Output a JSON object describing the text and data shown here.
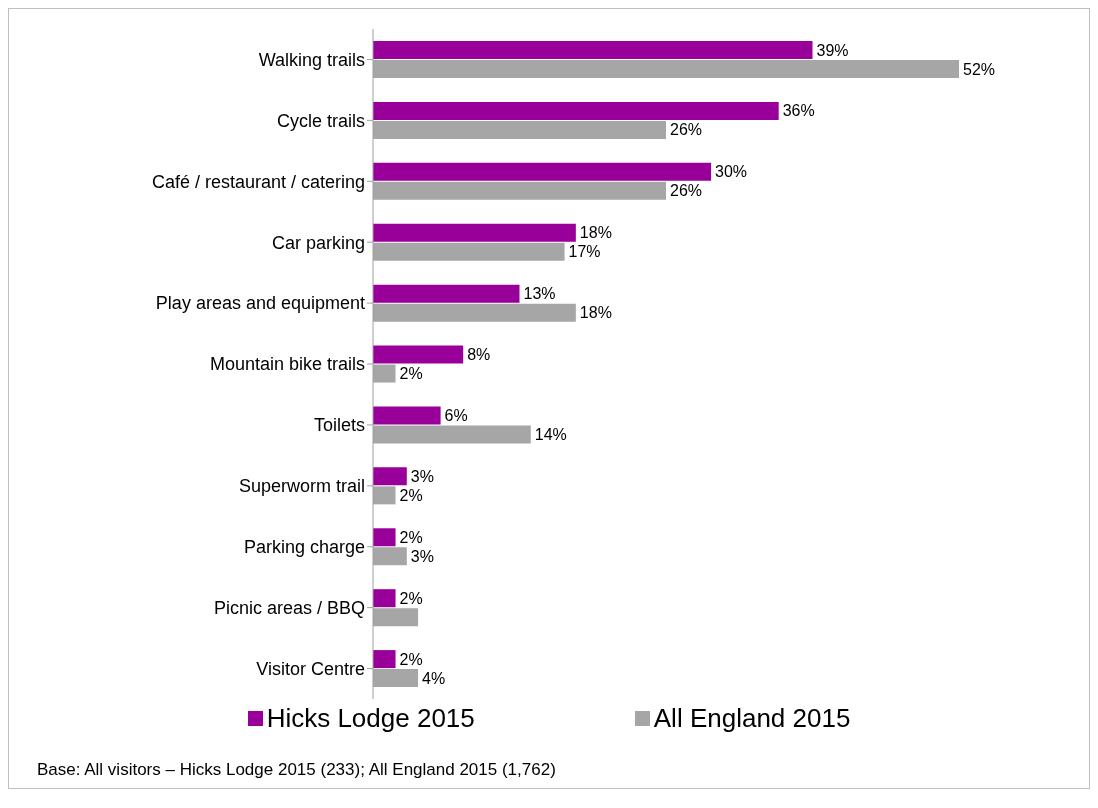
{
  "chart_data": {
    "type": "bar",
    "orientation": "horizontal",
    "categories": [
      "Walking trails",
      "Cycle trails",
      "Café / restaurant / catering",
      "Car parking",
      "Play areas and equipment",
      "Mountain bike trails",
      "Toilets",
      "Superworm trail",
      "Parking charge",
      "Picnic areas / BBQ",
      "Visitor Centre"
    ],
    "series": [
      {
        "name": "Hicks Lodge 2015",
        "color": "#990099",
        "values": [
          39,
          36,
          30,
          18,
          13,
          8,
          6,
          3,
          2,
          2,
          2
        ],
        "value_labels": [
          "39%",
          "36%",
          "30%",
          "18%",
          "13%",
          "8%",
          "6%",
          "3%",
          "2%",
          "2%",
          "2%"
        ]
      },
      {
        "name": "All England 2015",
        "color": "#a6a6a6",
        "values": [
          52,
          26,
          26,
          17,
          18,
          2,
          14,
          2,
          3,
          4,
          4
        ],
        "value_labels": [
          "52%",
          "26%",
          "26%",
          "17%",
          "18%",
          "2%",
          "14%",
          "2%",
          "3%",
          null,
          "4%"
        ]
      }
    ],
    "legend": "bottom",
    "grid": false,
    "annotations": [
      "Base: All visitors – Hicks Lodge 2015 (233); All England 2015 (1,762)"
    ]
  }
}
